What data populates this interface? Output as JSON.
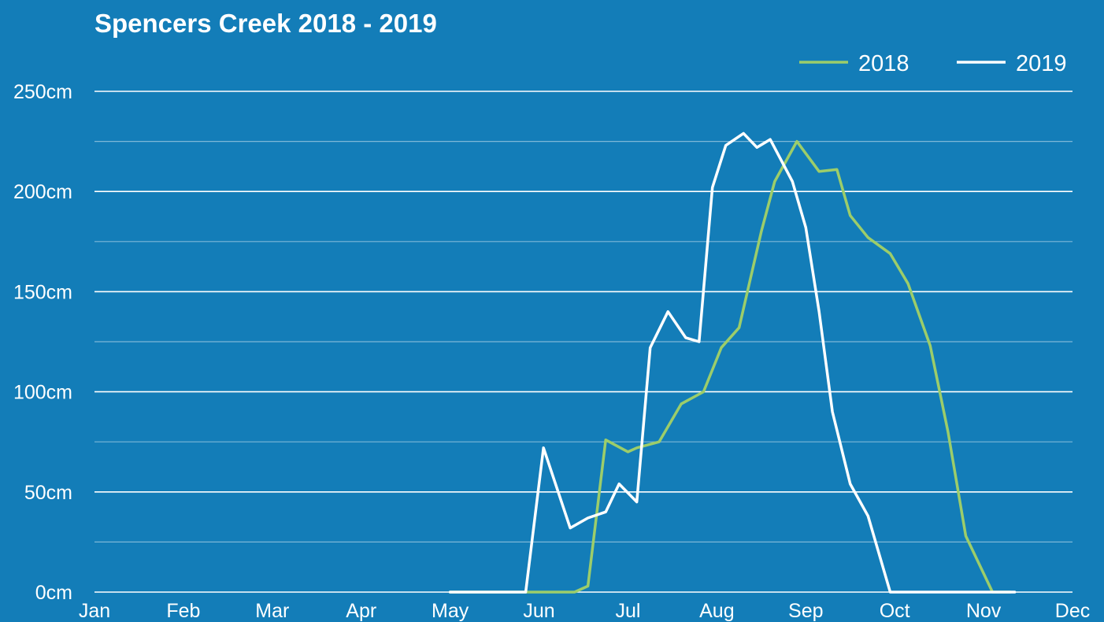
{
  "chart_data": {
    "type": "line",
    "title": "Spencers Creek 2018 - 2019",
    "xlabel": "",
    "ylabel": "",
    "x_ticks": [
      "Jan",
      "Feb",
      "Mar",
      "Apr",
      "May",
      "Jun",
      "Jul",
      "Aug",
      "Sep",
      "Oct",
      "Nov",
      "Dec"
    ],
    "y_ticks": [
      "0cm",
      "50cm",
      "100cm",
      "150cm",
      "200cm",
      "250cm"
    ],
    "y_unit": "cm",
    "xlim": [
      0,
      11
    ],
    "ylim": [
      0,
      250
    ],
    "grid": true,
    "minor_grid": true,
    "legend_position": "top-right",
    "series": [
      {
        "name": "2018",
        "color": "#9ccd6a",
        "x": [
          4.0,
          4.6,
          5.2,
          5.4,
          5.55,
          5.75,
          6.0,
          6.1,
          6.35,
          6.6,
          6.85,
          7.05,
          7.25,
          7.5,
          7.65,
          7.9,
          8.15,
          8.35,
          8.5,
          8.7,
          8.95,
          9.15,
          9.4,
          9.6,
          9.8,
          10.1,
          10.3
        ],
        "y": [
          0,
          0,
          0,
          0,
          3,
          76,
          70,
          72,
          75,
          94,
          100,
          122,
          132,
          180,
          205,
          225,
          210,
          211,
          188,
          177,
          169,
          154,
          123,
          80,
          28,
          0,
          0
        ]
      },
      {
        "name": "2019",
        "color": "#ffffff",
        "x": [
          4.0,
          4.85,
          5.05,
          5.35,
          5.55,
          5.75,
          5.9,
          6.1,
          6.25,
          6.45,
          6.65,
          6.8,
          6.95,
          7.1,
          7.3,
          7.45,
          7.6,
          7.85,
          8.0,
          8.15,
          8.3,
          8.5,
          8.7,
          8.95,
          9.15,
          9.35,
          9.55,
          9.75,
          10.0,
          10.15,
          10.35
        ],
        "y": [
          0,
          0,
          72,
          32,
          37,
          40,
          54,
          45,
          122,
          140,
          127,
          125,
          202,
          223,
          229,
          222,
          226,
          205,
          182,
          140,
          90,
          54,
          38,
          0,
          0,
          0,
          0,
          0,
          0,
          0,
          0
        ]
      }
    ]
  }
}
